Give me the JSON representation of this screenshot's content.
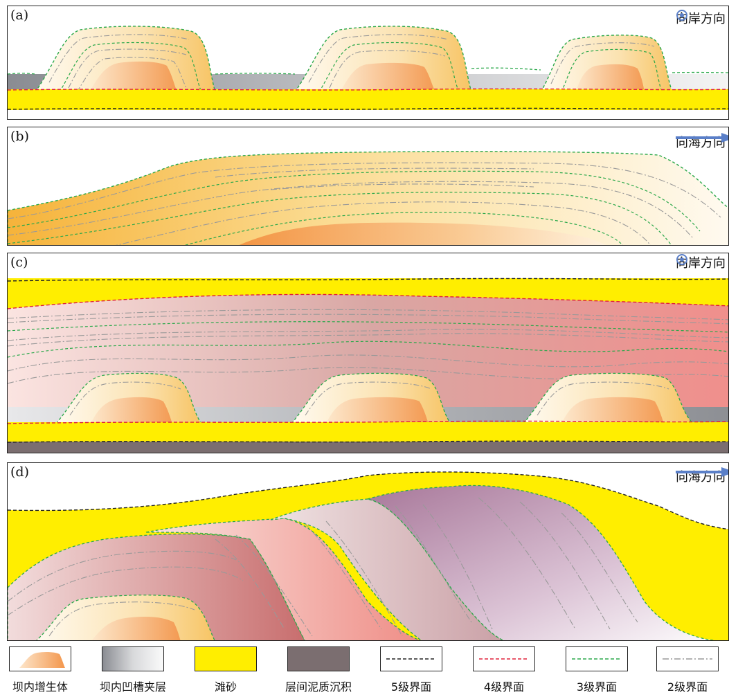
{
  "panels": [
    {
      "label": "(a)",
      "direction": "向岸方向",
      "direction_icon": "dot-circle-icon"
    },
    {
      "label": "(b)",
      "direction": "向海方向",
      "direction_icon": "arrow-right-icon"
    },
    {
      "label": "(c)",
      "direction": "向岸方向",
      "direction_icon": "dot-circle-icon"
    },
    {
      "label": "(d)",
      "direction": "向海方向",
      "direction_icon": "arrow-right-icon"
    }
  ],
  "legend": [
    {
      "label": "坝内增生体",
      "swatch": "accretion-body"
    },
    {
      "label": "坝内凹槽夹层",
      "swatch": "groove-interlayer"
    },
    {
      "label": "滩砂",
      "swatch": "beach-sand"
    },
    {
      "label": "层间泥质沉积",
      "swatch": "mud-deposit"
    },
    {
      "label": "5级界面",
      "swatch": "line",
      "color": "#222222"
    },
    {
      "label": "4级界面",
      "swatch": "line",
      "color": "#e0203a"
    },
    {
      "label": "3级界面",
      "swatch": "line",
      "color": "#2aa84a"
    },
    {
      "label": "2级界面",
      "swatch": "line",
      "color": "#999999"
    }
  ],
  "colors": {
    "sand": "#ffee00",
    "mud": "#7b6e70",
    "level5": "#222222",
    "level4": "#e0203a",
    "level3": "#2aa84a",
    "level2": "#999999",
    "arrow": "#5a7fc8"
  }
}
